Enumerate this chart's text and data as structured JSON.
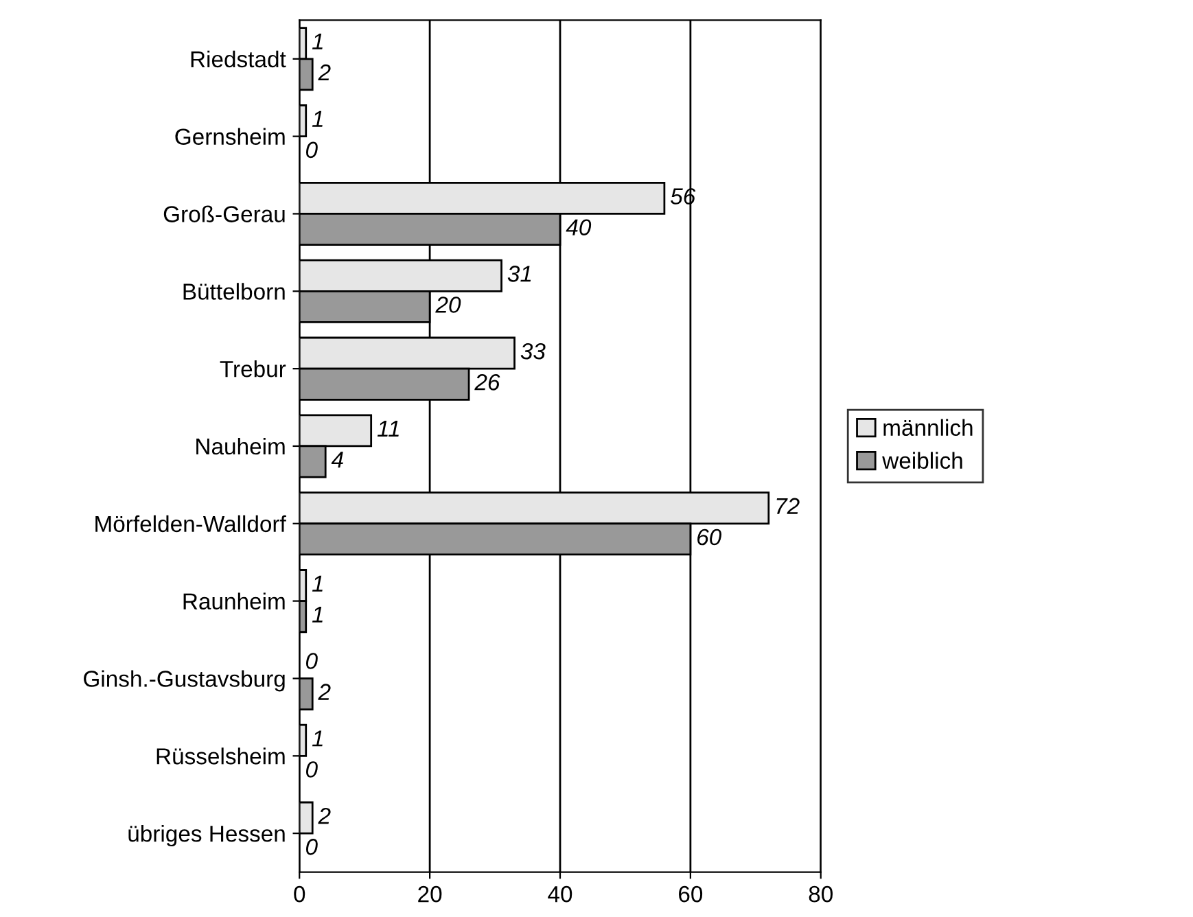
{
  "chart_data": {
    "type": "bar",
    "orientation": "horizontal",
    "categories": [
      "Riedstadt",
      "Gernsheim",
      "Groß-Gerau",
      "Büttelborn",
      "Trebur",
      "Nauheim",
      "Mörfelden-Walldorf",
      "Raunheim",
      "Ginsh.-Gustavsburg",
      "Rüsselsheim",
      "übriges Hessen"
    ],
    "series": [
      {
        "name": "männlich",
        "color": "#e6e6e6",
        "values": [
          1,
          1,
          56,
          31,
          33,
          11,
          72,
          1,
          0,
          1,
          2
        ]
      },
      {
        "name": "weiblich",
        "color": "#999999",
        "values": [
          2,
          0,
          40,
          20,
          26,
          4,
          60,
          1,
          2,
          0,
          0
        ]
      }
    ],
    "xlim": [
      0,
      80
    ],
    "xticks": [
      0,
      20,
      40,
      60,
      80
    ],
    "grid": "x",
    "legend": "right",
    "data_labels": true
  }
}
